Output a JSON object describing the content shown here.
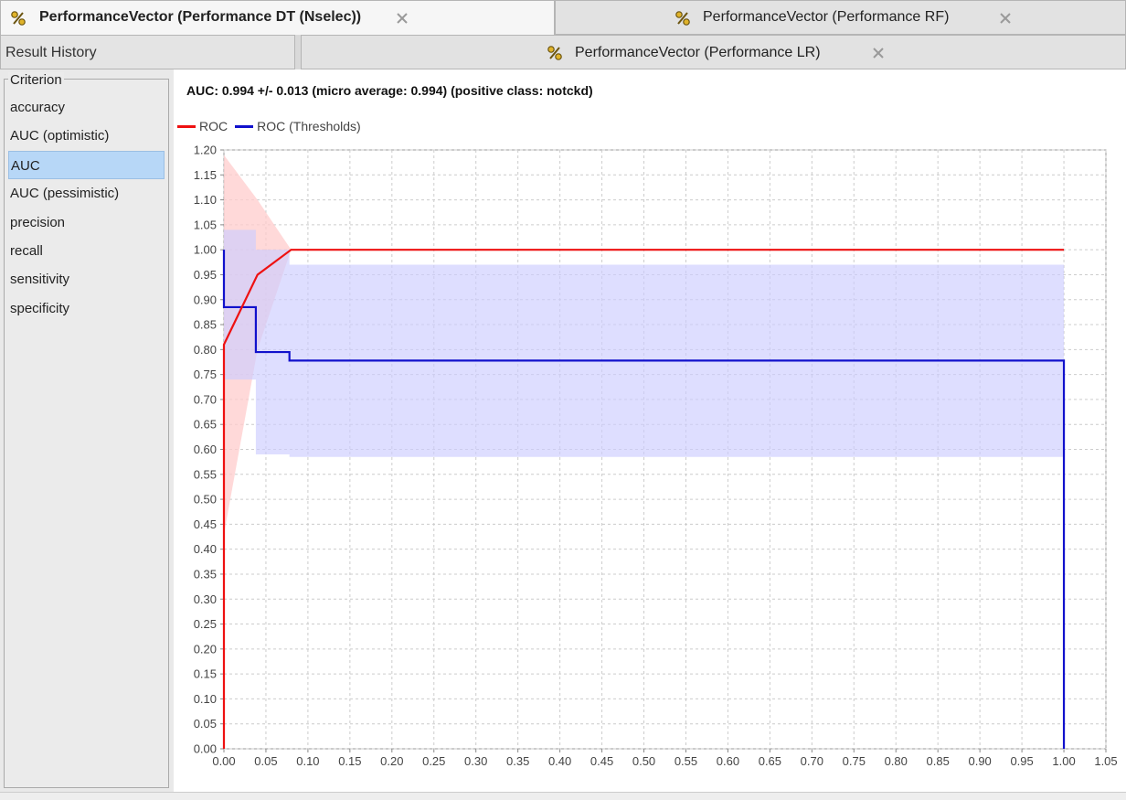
{
  "tabs_top": [
    {
      "label": "PerformanceVector (Performance DT (Nselec))",
      "active": true
    },
    {
      "label": "PerformanceVector (Performance RF)",
      "active": false
    }
  ],
  "tabs_second": [
    {
      "label": "Result History"
    },
    {
      "label": "PerformanceVector (Performance LR)"
    }
  ],
  "sidebar": {
    "legend": "Criterion",
    "items": [
      {
        "label": "accuracy"
      },
      {
        "label": "AUC (optimistic)"
      },
      {
        "label": "AUC",
        "selected": true
      },
      {
        "label": "AUC (pessimistic)"
      },
      {
        "label": "precision"
      },
      {
        "label": "recall"
      },
      {
        "label": "sensitivity"
      },
      {
        "label": "specificity"
      }
    ]
  },
  "main": {
    "title": "AUC: 0.994 +/- 0.013 (micro average: 0.994) (positive class: notckd)"
  },
  "colors": {
    "roc": "#ee1111",
    "roc_thresholds": "#1111cc",
    "roc_band": "#ffcccc",
    "thresholds_band": "#ccccff",
    "grid": "#cccccc",
    "tab_icon": "#c9a11a"
  },
  "icons": {
    "tab_icon": "percent-icon",
    "close": "close-icon"
  },
  "chart_data": {
    "type": "line",
    "xlim": [
      0.0,
      1.05
    ],
    "ylim": [
      0.0,
      1.2
    ],
    "x_ticks": [
      "0.00",
      "0.05",
      "0.10",
      "0.15",
      "0.20",
      "0.25",
      "0.30",
      "0.35",
      "0.40",
      "0.45",
      "0.50",
      "0.55",
      "0.60",
      "0.65",
      "0.70",
      "0.75",
      "0.80",
      "0.85",
      "0.90",
      "0.95",
      "1.00",
      "1.05"
    ],
    "y_ticks": [
      "0.00",
      "0.05",
      "0.10",
      "0.15",
      "0.20",
      "0.25",
      "0.30",
      "0.35",
      "0.40",
      "0.45",
      "0.50",
      "0.55",
      "0.60",
      "0.65",
      "0.70",
      "0.75",
      "0.80",
      "0.85",
      "0.90",
      "0.95",
      "1.00",
      "1.05",
      "1.10",
      "1.15",
      "1.20"
    ],
    "grid": true,
    "legend_position": "top-left",
    "series": [
      {
        "name": "ROC",
        "color": "#ee1111",
        "points": [
          [
            0.0,
            0.0
          ],
          [
            0.0,
            0.81
          ],
          [
            0.04,
            0.95
          ],
          [
            0.08,
            1.0
          ],
          [
            1.0,
            1.0
          ]
        ],
        "band_upper": [
          [
            0.0,
            1.19
          ],
          [
            0.04,
            1.1
          ],
          [
            0.08,
            1.0
          ]
        ],
        "band_lower": [
          [
            0.0,
            0.43
          ],
          [
            0.04,
            0.8
          ],
          [
            0.08,
            1.0
          ]
        ]
      },
      {
        "name": "ROC (Thresholds)",
        "color": "#1111cc",
        "points": [
          [
            0.0,
            1.0
          ],
          [
            0.0,
            0.885
          ],
          [
            0.038,
            0.885
          ],
          [
            0.038,
            0.795
          ],
          [
            0.078,
            0.795
          ],
          [
            0.078,
            0.778
          ],
          [
            1.0,
            0.778
          ],
          [
            1.0,
            0.0
          ]
        ],
        "band_upper": [
          [
            0.0,
            1.04
          ],
          [
            0.038,
            1.04
          ],
          [
            0.038,
            1.0
          ],
          [
            0.078,
            1.0
          ],
          [
            0.078,
            0.97
          ],
          [
            1.0,
            0.97
          ]
        ],
        "band_lower": [
          [
            0.0,
            0.74
          ],
          [
            0.038,
            0.74
          ],
          [
            0.038,
            0.59
          ],
          [
            0.078,
            0.59
          ],
          [
            0.078,
            0.585
          ],
          [
            1.0,
            0.585
          ]
        ]
      }
    ]
  }
}
